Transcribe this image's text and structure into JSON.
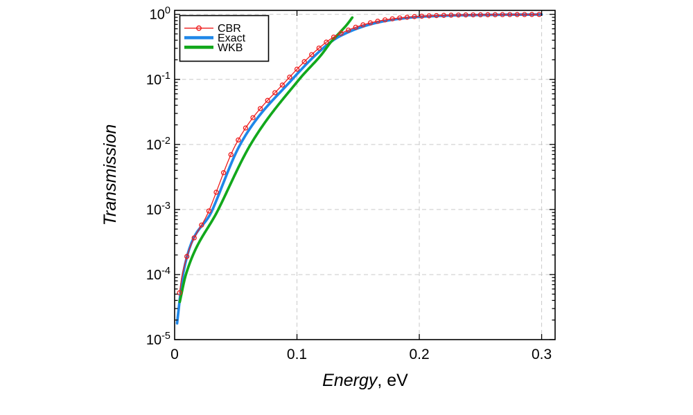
{
  "figure": {
    "background": "#ffffff"
  },
  "chart_data": {
    "type": "line",
    "title": "",
    "xlabel": {
      "italic": "Energy",
      "suffix": ", eV"
    },
    "ylabel": "Transmission",
    "x_axis": {
      "min": 0,
      "max": 0.311,
      "ticks": [
        {
          "value": 0,
          "label": "0",
          "mark": false
        },
        {
          "value": 0.1,
          "label": "0.1",
          "mark": true
        },
        {
          "value": 0.2,
          "label": "0.2",
          "mark": true
        },
        {
          "value": 0.3,
          "label": "0.3",
          "mark": true
        }
      ],
      "grid_at": [
        0.1,
        0.2,
        0.3
      ]
    },
    "y_axis": {
      "scale": "log",
      "min": 1e-05,
      "max": 1.15,
      "ticks": [
        {
          "exp": 0,
          "label_base": "10",
          "label_exp": "0"
        },
        {
          "exp": -1,
          "label_base": "10",
          "label_exp": "-1"
        },
        {
          "exp": -2,
          "label_base": "10",
          "label_exp": "-2"
        },
        {
          "exp": -3,
          "label_base": "10",
          "label_exp": "-3"
        },
        {
          "exp": -4,
          "label_base": "10",
          "label_exp": "-4"
        },
        {
          "exp": -5,
          "label_base": "10",
          "label_exp": "-5"
        }
      ],
      "grid_at_exponents": [
        0,
        -1,
        -2,
        -3,
        -4
      ],
      "minor_multiples": [
        2,
        3,
        4,
        5,
        6,
        7,
        8,
        9
      ]
    },
    "grid": {
      "color": "#c9c9c9",
      "dash": "6 4.5"
    },
    "frame_color": "#000000",
    "series": [
      {
        "name": "CBR",
        "color": "#ee1c1c",
        "width": 1.3,
        "marker": {
          "shape": "open-circle",
          "radius": 3,
          "start": 0.004,
          "step": 0.006,
          "end": 0.298
        },
        "points_logT": [
          [
            0.004,
            -4.28
          ],
          [
            0.0062,
            -4.0
          ],
          [
            0.0285,
            -3.0
          ],
          [
            0.05,
            -2.0
          ],
          [
            0.0923,
            -1.0
          ],
          [
            0.126,
            -0.4
          ],
          [
            0.145,
            -0.22
          ],
          [
            0.165,
            -0.11
          ],
          [
            0.19,
            -0.045
          ],
          [
            0.22,
            -0.016
          ],
          [
            0.26,
            -0.006
          ],
          [
            0.298,
            -0.002
          ]
        ]
      },
      {
        "name": "Exact",
        "color": "#1f87e8",
        "width": 3.7,
        "points_logT": [
          [
            0.002,
            -4.75
          ],
          [
            0.0068,
            -4.0
          ],
          [
            0.031,
            -3.0
          ],
          [
            0.0536,
            -2.0
          ],
          [
            0.0961,
            -1.0
          ],
          [
            0.128,
            -0.42
          ],
          [
            0.145,
            -0.25
          ],
          [
            0.165,
            -0.13
          ],
          [
            0.19,
            -0.055
          ],
          [
            0.22,
            -0.022
          ],
          [
            0.26,
            -0.008
          ],
          [
            0.3,
            -0.003
          ]
        ]
      },
      {
        "name": "WKB",
        "color": "#12a81c",
        "width": 3.7,
        "points_logT": [
          [
            0.0042,
            -4.42
          ],
          [
            0.0092,
            -4.0
          ],
          [
            0.0357,
            -3.0
          ],
          [
            0.0621,
            -2.0
          ],
          [
            0.1018,
            -1.0
          ],
          [
            0.12,
            -0.62
          ],
          [
            0.128,
            -0.42
          ],
          [
            0.136,
            -0.26
          ],
          [
            0.141,
            -0.155
          ],
          [
            0.1452,
            -0.05
          ]
        ]
      }
    ],
    "legend": {
      "position": "top-left",
      "items": [
        {
          "label": "CBR"
        },
        {
          "label": "Exact"
        },
        {
          "label": "WKB"
        }
      ]
    }
  }
}
